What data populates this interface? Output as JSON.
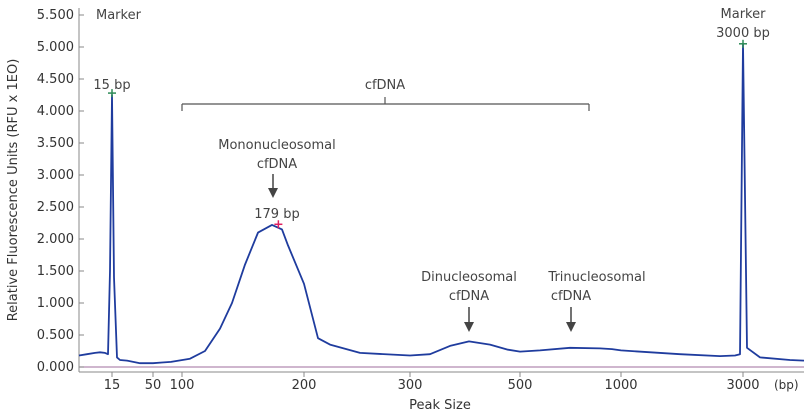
{
  "chart_data": {
    "type": "line",
    "title": "",
    "xlabel": "Peak Size",
    "ylabel": "Relative Fluorescence Units (RFU x 1EO)",
    "x_unit": "(bp)",
    "x_ticks": [
      "15",
      "50",
      "100",
      "200",
      "300",
      "500",
      "1000",
      "3000"
    ],
    "y_ticks": [
      "0.000",
      "0.500",
      "1.000",
      "1.500",
      "2.000",
      "2.500",
      "3.000",
      "3.500",
      "4.000",
      "4.500",
      "5.000",
      "5.500"
    ],
    "ylim": [
      0,
      5500
    ],
    "grid": false,
    "series": [
      {
        "color": "#1f3c9e",
        "x": [
          "<15",
          "<15",
          "<15",
          "<15",
          "<15",
          "15",
          "15",
          "15",
          "15",
          "15",
          "15",
          "20",
          "30",
          "50",
          "70",
          "90",
          "110",
          "125",
          "140",
          "150",
          "160",
          "170",
          "179",
          "185",
          "190",
          "200",
          "215",
          "230",
          "260",
          "300",
          "330",
          "360",
          "385",
          "420",
          "460",
          "500",
          "550",
          "620",
          "700",
          "850",
          "1000",
          "1500",
          "2500",
          "2800",
          "2950",
          "3000",
          "3050",
          "3200",
          ">3000",
          ">3000"
        ],
        "y": [
          180,
          200,
          220,
          230,
          220,
          200,
          1500,
          4250,
          1400,
          150,
          110,
          100,
          60,
          60,
          70,
          80,
          130,
          250,
          600,
          1000,
          1600,
          2100,
          2220,
          2150,
          1900,
          1300,
          450,
          350,
          220,
          180,
          200,
          330,
          400,
          350,
          270,
          240,
          260,
          300,
          290,
          280,
          260,
          200,
          170,
          180,
          200,
          5050,
          300,
          150,
          110,
          100
        ]
      }
    ],
    "markers": [
      {
        "label": "15 bp",
        "x": "15",
        "y": 4280,
        "color": "#2e8b57"
      },
      {
        "label": "179 bp",
        "x": "179",
        "y": 2230,
        "color": "#e02060"
      },
      {
        "label": "3000 bp",
        "x": "3000",
        "y": 5050,
        "color": "#2e8b57"
      }
    ],
    "annotations": {
      "marker_left": "Marker",
      "marker_right": "Marker",
      "cfdna": "cfDNA",
      "mono_line1": "Mononucleosomal",
      "mono_line2": "cfDNA",
      "di_line1": "Dinucleosomal",
      "di_line2": "cfDNA",
      "tri_line1": "Trinucleosomal",
      "tri_line2": "cfDNA"
    }
  }
}
